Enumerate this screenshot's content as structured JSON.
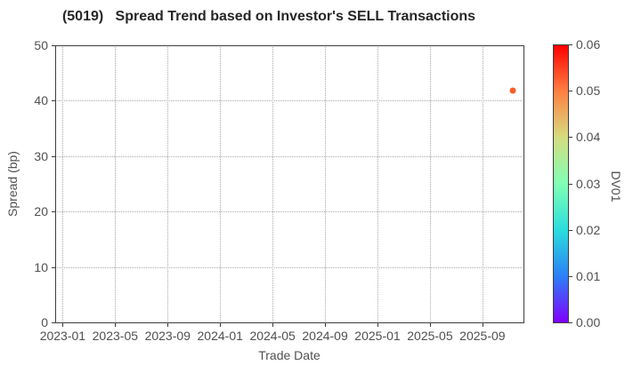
{
  "style": {
    "background": "#ffffff",
    "spine_color": "#3d3d3d",
    "grid_color": "#a9a9a9",
    "tick_label_color": "#4f4f4f",
    "title_color": "#262626"
  },
  "chart_data": {
    "type": "scatter",
    "title": "(5019)   Spread Trend based on Investor's SELL Transactions",
    "xlabel": "Trade Date",
    "ylabel": "Spread (bp)",
    "grid": {
      "visible": true,
      "style": "dotted"
    },
    "legend": "none",
    "x_axis": {
      "tick_labels": [
        "2023-01",
        "2023-05",
        "2023-09",
        "2024-01",
        "2024-05",
        "2024-09",
        "2025-01",
        "2025-05",
        "2025-09"
      ],
      "tick_month_offsets": [
        0,
        4,
        8,
        12,
        16,
        20,
        24,
        28,
        32
      ],
      "xlim_month_offsets": [
        -0.57,
        35.13
      ]
    },
    "y_axis": {
      "tick_labels": [
        "0",
        "10",
        "20",
        "30",
        "40",
        "50"
      ],
      "tick_values": [
        0,
        10,
        20,
        30,
        40,
        50
      ],
      "ylim": [
        0,
        50
      ]
    },
    "points": [
      {
        "date": "2025-11",
        "month_offset": 34.3,
        "spread_bp": 41.9,
        "dv01": 0.053,
        "color": "#fa5c28"
      }
    ],
    "colorbar": {
      "label": "DV01",
      "vmin": 0.0,
      "vmax": 0.06,
      "tick_labels": [
        "0.00",
        "0.01",
        "0.02",
        "0.03",
        "0.04",
        "0.05",
        "0.06"
      ],
      "gradient_stops_bottom_to_top": [
        "#8000ff",
        "#2b80f6",
        "#2bdddd",
        "#80ffb4",
        "#d5dd80",
        "#ff8042",
        "#ff0000"
      ]
    }
  }
}
